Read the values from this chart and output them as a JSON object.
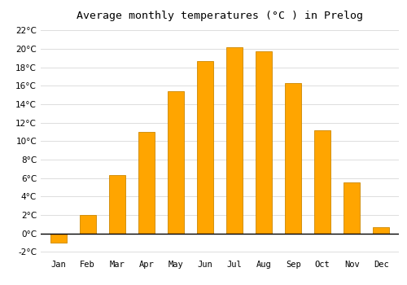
{
  "title": "Average monthly temperatures (°C ) in Prelog",
  "months": [
    "Jan",
    "Feb",
    "Mar",
    "Apr",
    "May",
    "Jun",
    "Jul",
    "Aug",
    "Sep",
    "Oct",
    "Nov",
    "Dec"
  ],
  "values": [
    -1.0,
    2.0,
    6.3,
    11.0,
    15.4,
    18.7,
    20.2,
    19.7,
    16.3,
    11.2,
    5.5,
    0.7
  ],
  "bar_color": "#FFA500",
  "bar_edge_color": "#CC8800",
  "background_color": "#FFFFFF",
  "grid_color": "#DDDDDD",
  "ylim": [
    -2.5,
    22.5
  ],
  "yticks": [
    -2,
    0,
    2,
    4,
    6,
    8,
    10,
    12,
    14,
    16,
    18,
    20,
    22
  ],
  "title_fontsize": 9.5,
  "tick_fontsize": 7.5,
  "bar_width": 0.55
}
